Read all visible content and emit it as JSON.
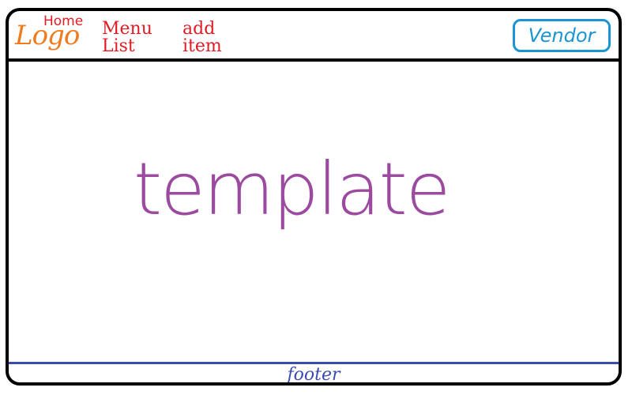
{
  "header": {
    "logo_text": "Logo",
    "nav": {
      "home": "Home",
      "menu_list": [
        "Menu",
        "List"
      ],
      "add_item": [
        "add",
        "item"
      ]
    },
    "vendor_button": "Vendor"
  },
  "main": {
    "template_text": "template"
  },
  "footer": {
    "text": "footer"
  },
  "colors": {
    "logo": "#f07b1f",
    "nav": "#e01b24",
    "vendor": "#1a94d2",
    "template": "#9b4aa0",
    "footer": "#3b4bb0",
    "frame": "#000000"
  }
}
